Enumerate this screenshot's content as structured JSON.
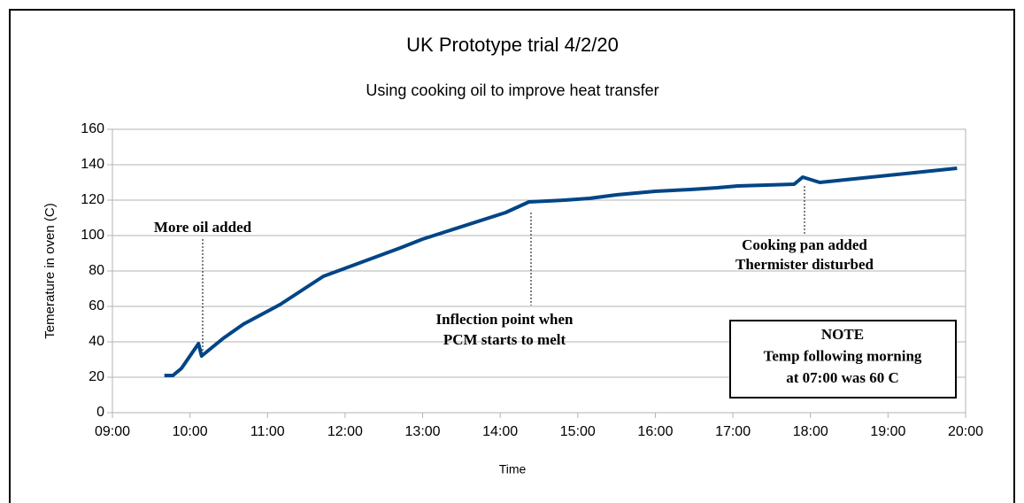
{
  "chart_data": {
    "type": "line",
    "title": "UK Prototype trial 4/2/20",
    "subtitle": "Using cooking oil to improve heat transfer",
    "x_label": "Time",
    "y_label": "Temerature in oven (C)",
    "x": [
      9.67,
      9.78,
      9.89,
      10.11,
      10.15,
      10.43,
      10.69,
      11.16,
      11.72,
      12.71,
      13.0,
      14.07,
      14.37,
      14.83,
      15.15,
      15.5,
      16.0,
      16.45,
      16.8,
      17.06,
      17.79,
      17.9,
      18.12,
      19.89
    ],
    "series": [
      {
        "name": "Temperature",
        "color": "#004586",
        "values": [
          21,
          21,
          25,
          39,
          32,
          42,
          50,
          61,
          77,
          93,
          98,
          113,
          119,
          120,
          121,
          123,
          125,
          126,
          127,
          128,
          129,
          133,
          130,
          138
        ]
      }
    ],
    "xlim": [
      9,
      20
    ],
    "xticks": [
      {
        "value": 9,
        "label": "09:00"
      },
      {
        "value": 10,
        "label": "10:00"
      },
      {
        "value": 11,
        "label": "11:00"
      },
      {
        "value": 12,
        "label": "12:00"
      },
      {
        "value": 13,
        "label": "13:00"
      },
      {
        "value": 14,
        "label": "14:00"
      },
      {
        "value": 15,
        "label": "15:00"
      },
      {
        "value": 16,
        "label": "16:00"
      },
      {
        "value": 17,
        "label": "17:00"
      },
      {
        "value": 18,
        "label": "18:00"
      },
      {
        "value": 19,
        "label": "19:00"
      },
      {
        "value": 20,
        "label": "20:00"
      }
    ],
    "ylim": [
      0,
      160
    ],
    "yticks": [
      0,
      20,
      40,
      60,
      80,
      100,
      120,
      140,
      160
    ],
    "grid": true,
    "annotations": [
      {
        "lines": [
          "More oil added"
        ]
      },
      {
        "lines": [
          "Inflection point when",
          "PCM starts to melt"
        ]
      },
      {
        "lines": [
          "Cooking pan added",
          "Thermister disturbed"
        ]
      }
    ],
    "note": {
      "lines": [
        "NOTE",
        "Temp following morning",
        "at 07:00 was 60 C"
      ]
    }
  }
}
